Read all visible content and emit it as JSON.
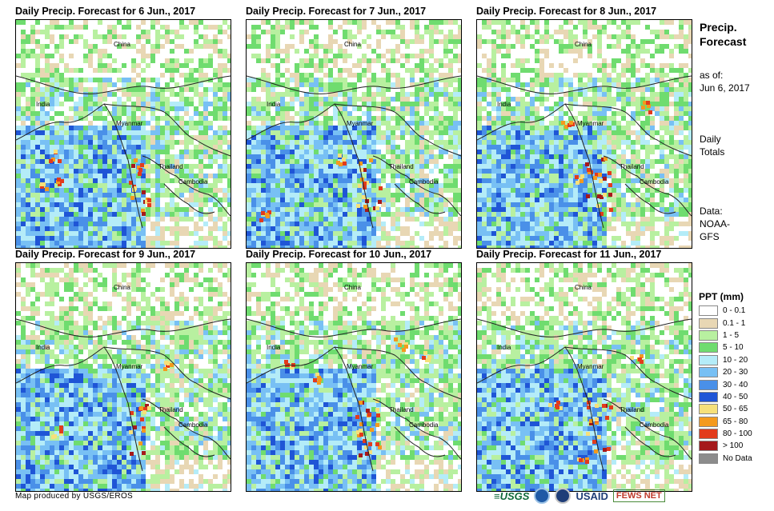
{
  "panels": [
    {
      "title": "Daily Precip. Forecast for 6 Jun., 2017",
      "labels": {
        "china": "China",
        "india": "India",
        "myanmar": "Myanmar",
        "thailand": "Thailand",
        "cambodia": "Cambodia"
      }
    },
    {
      "title": "Daily Precip. Forecast for 7 Jun., 2017",
      "labels": {
        "china": "China",
        "india": "India",
        "myanmar": "Myanmar",
        "thailand": "Thailand",
        "cambodia": "Cambodia"
      }
    },
    {
      "title": "Daily Precip. Forecast for 8 Jun., 2017",
      "labels": {
        "china": "China",
        "india": "India",
        "myanmar": "Myanmar",
        "thailand": "Thailand",
        "cambodia": "Cambodia"
      }
    },
    {
      "title": "Daily Precip. Forecast for 9 Jun., 2017",
      "labels": {
        "china": "China",
        "india": "India",
        "myanmar": "Myanmar",
        "thailand": "Thailand",
        "cambodia": "Cambodia"
      }
    },
    {
      "title": "Daily Precip. Forecast for 10 Jun., 2017",
      "labels": {
        "china": "China",
        "india": "India",
        "myanmar": "Myanmar",
        "thailand": "Thailand",
        "cambodia": "Cambodia"
      }
    },
    {
      "title": "Daily Precip. Forecast for 11 Jun., 2017",
      "labels": {
        "china": "China",
        "india": "India",
        "myanmar": "Myanmar",
        "thailand": "Thailand",
        "cambodia": "Cambodia"
      }
    }
  ],
  "sidebar": {
    "title_line1": "Precip.",
    "title_line2": "Forecast",
    "asof_line1": "as of:",
    "asof_line2": "Jun 6, 2017",
    "totals_line1": "Daily",
    "totals_line2": "Totals",
    "data_line1": "Data:",
    "data_line2": "NOAA-",
    "data_line3": "GFS"
  },
  "legend": {
    "title": "PPT (mm)",
    "items": [
      {
        "label": "0 - 0.1",
        "color": "#ffffff"
      },
      {
        "label": "0.1 - 1",
        "color": "#e8d7b4"
      },
      {
        "label": "1 - 5",
        "color": "#b8f0a0"
      },
      {
        "label": "5 - 10",
        "color": "#6fdc6f"
      },
      {
        "label": "10 - 20",
        "color": "#b4ecf8"
      },
      {
        "label": "20 - 30",
        "color": "#78c0f4"
      },
      {
        "label": "30 - 40",
        "color": "#4a90e8"
      },
      {
        "label": "40 - 50",
        "color": "#1f55d6"
      },
      {
        "label": "50 - 65",
        "color": "#f6e07a"
      },
      {
        "label": "65 - 80",
        "color": "#f49a1e"
      },
      {
        "label": "80 - 100",
        "color": "#e23b1c"
      },
      {
        "label": "> 100",
        "color": "#a5191b"
      },
      {
        "label": "No Data",
        "color": "#8c8c8c"
      }
    ]
  },
  "footer": {
    "credit": "Map produced by USGS/EROS",
    "logo_usgs": "≡USGS",
    "logo_usaid": "USAID",
    "logo_fews": "FEWS NET"
  },
  "panel_rain": [
    {
      "main": 7,
      "blobs": 3
    },
    {
      "main": 6,
      "blobs": 2
    },
    {
      "main": 7,
      "blobs": 3
    },
    {
      "main": 5,
      "blobs": 2
    },
    {
      "main": 8,
      "blobs": 4
    },
    {
      "main": 6,
      "blobs": 3
    }
  ]
}
